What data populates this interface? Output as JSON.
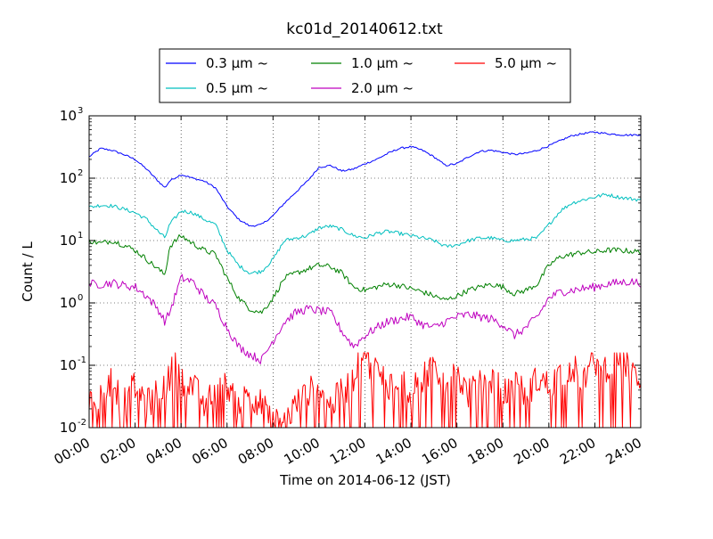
{
  "chart_data": {
    "type": "line",
    "title": "kc01d_20140612.txt",
    "xlabel": "Time on 2014-06-12 (JST)",
    "ylabel": "Count / L",
    "yscale": "log",
    "ylim": [
      0.01,
      1000
    ],
    "xlim_hours": [
      0,
      24
    ],
    "x_ticks": [
      "00:00",
      "02:00",
      "04:00",
      "06:00",
      "08:00",
      "10:00",
      "12:00",
      "14:00",
      "16:00",
      "18:00",
      "20:00",
      "22:00",
      "24:00"
    ],
    "y_ticks": [
      {
        "value": 0.01,
        "base": "10",
        "exp": "-2"
      },
      {
        "value": 0.1,
        "base": "10",
        "exp": "-1"
      },
      {
        "value": 1,
        "base": "10",
        "exp": "0"
      },
      {
        "value": 10,
        "base": "10",
        "exp": "1"
      },
      {
        "value": 100,
        "base": "10",
        "exp": "2"
      },
      {
        "value": 1000,
        "base": "10",
        "exp": "3"
      }
    ],
    "grid": true,
    "legend_position": "top-center",
    "series": [
      {
        "name": "0.3 µm  ~",
        "color": "#0000ff",
        "x": [
          0,
          0.5,
          1,
          1.5,
          2,
          2.5,
          3,
          3.3,
          3.5,
          4,
          4.5,
          5,
          5.5,
          6,
          6.5,
          7,
          7.5,
          8,
          8.5,
          9,
          9.5,
          10,
          10.5,
          11,
          11.5,
          12,
          12.5,
          13,
          13.5,
          14,
          14.5,
          15,
          15.5,
          16,
          16.5,
          17,
          17.5,
          18,
          18.5,
          19,
          19.5,
          20,
          20.5,
          21,
          21.5,
          22,
          22.5,
          23,
          23.5,
          24
        ],
        "y": [
          220,
          300,
          280,
          240,
          200,
          140,
          90,
          70,
          90,
          115,
          100,
          90,
          70,
          35,
          22,
          17,
          18,
          25,
          40,
          60,
          90,
          150,
          160,
          130,
          140,
          170,
          200,
          250,
          300,
          320,
          280,
          220,
          160,
          170,
          220,
          270,
          280,
          260,
          240,
          250,
          280,
          330,
          400,
          480,
          520,
          550,
          520,
          500,
          490,
          500
        ]
      },
      {
        "name": "0.5 µm  ~",
        "color": "#00bfbf",
        "x": [
          0,
          0.5,
          1,
          1.5,
          2,
          2.5,
          3,
          3.3,
          3.5,
          4,
          4.5,
          5,
          5.5,
          6,
          6.5,
          7,
          7.5,
          8,
          8.5,
          9,
          9.5,
          10,
          10.5,
          11,
          11.5,
          12,
          12.5,
          13,
          13.5,
          14,
          14.5,
          15,
          15.5,
          16,
          16.5,
          17,
          17.5,
          18,
          18.5,
          19,
          19.5,
          20,
          20.5,
          21,
          21.5,
          22,
          22.5,
          23,
          23.5,
          24
        ],
        "y": [
          34,
          37,
          36,
          32,
          28,
          22,
          14,
          11,
          18,
          30,
          28,
          22,
          18,
          7,
          4,
          3,
          3.2,
          5,
          10,
          11,
          12,
          16,
          17,
          15,
          12,
          11,
          13,
          14,
          13,
          12,
          11,
          10,
          8,
          8.5,
          10,
          11,
          11,
          10,
          10,
          10.5,
          11,
          18,
          30,
          40,
          45,
          50,
          55,
          50,
          47,
          45
        ]
      },
      {
        "name": "1.0 µm  ~",
        "color": "#008000",
        "x": [
          0,
          0.5,
          1,
          1.5,
          2,
          2.5,
          3,
          3.3,
          3.5,
          4,
          4.5,
          5,
          5.5,
          6,
          6.5,
          7,
          7.5,
          8,
          8.5,
          9,
          9.5,
          10,
          10.5,
          11,
          11.5,
          12,
          12.5,
          13,
          13.5,
          14,
          14.5,
          15,
          15.5,
          16,
          16.5,
          17,
          17.5,
          18,
          18.5,
          19,
          19.5,
          20,
          20.5,
          21,
          21.5,
          22,
          22.5,
          23,
          23.5,
          24
        ],
        "y": [
          10,
          9,
          10,
          8.5,
          7,
          5,
          3.5,
          2.8,
          8,
          12,
          9,
          7,
          6,
          2.5,
          1.2,
          0.8,
          0.7,
          1.2,
          2.5,
          3,
          3.5,
          4,
          3.8,
          3,
          1.8,
          1.6,
          1.8,
          2,
          1.9,
          1.7,
          1.5,
          1.3,
          1.1,
          1.3,
          1.6,
          1.8,
          2,
          1.8,
          1.4,
          1.6,
          2,
          4,
          5.5,
          6,
          6.5,
          6.5,
          7,
          7,
          6.8,
          6.5
        ]
      },
      {
        "name": "2.0 µm  ~",
        "color": "#bf00bf",
        "x": [
          0,
          0.5,
          1,
          1.5,
          2,
          2.5,
          3,
          3.3,
          3.5,
          4,
          4.5,
          5,
          5.5,
          6,
          6.5,
          7,
          7.5,
          8,
          8.5,
          9,
          9.5,
          10,
          10.5,
          11,
          11.5,
          12,
          12.5,
          13,
          13.5,
          14,
          14.5,
          15,
          15.5,
          16,
          16.5,
          17,
          17.5,
          18,
          18.5,
          19,
          19.5,
          20,
          20.5,
          21,
          21.5,
          22,
          22.5,
          23,
          23.5,
          24
        ],
        "y": [
          2,
          2,
          2.1,
          1.9,
          1.8,
          1.3,
          0.8,
          0.5,
          0.7,
          2.5,
          2.2,
          1.3,
          0.9,
          0.4,
          0.2,
          0.15,
          0.12,
          0.25,
          0.5,
          0.7,
          0.8,
          0.75,
          0.7,
          0.35,
          0.2,
          0.3,
          0.4,
          0.5,
          0.55,
          0.6,
          0.45,
          0.4,
          0.5,
          0.6,
          0.65,
          0.6,
          0.55,
          0.45,
          0.3,
          0.4,
          0.6,
          1.2,
          1.5,
          1.6,
          1.7,
          1.8,
          2,
          2.1,
          2.2,
          2.1
        ]
      },
      {
        "name": "5.0 µm  ~",
        "color": "#ff0000",
        "x": [
          0,
          0.5,
          1,
          1.5,
          2,
          2.5,
          3,
          3.5,
          3.7,
          4,
          4.5,
          5,
          5.5,
          6,
          6.5,
          7,
          7.5,
          8,
          8.5,
          9,
          9.5,
          10,
          10.5,
          11,
          11.5,
          11.8,
          12,
          12.3,
          12.5,
          13,
          13.5,
          14,
          14.5,
          15,
          15.5,
          16,
          16.5,
          17,
          17.5,
          18,
          18.5,
          19,
          19.5,
          20,
          20.5,
          21,
          21.5,
          22,
          22.5,
          23,
          23.5,
          24
        ],
        "y": [
          0.02,
          0.03,
          0.05,
          0.02,
          0.04,
          0.02,
          0.03,
          0.05,
          0.12,
          0.05,
          0.04,
          0.02,
          0.03,
          0.04,
          0.02,
          0.03,
          0.02,
          0.01,
          0.01,
          0.02,
          0.03,
          0.04,
          0.02,
          0.03,
          0.05,
          0.15,
          0.2,
          0.05,
          0.08,
          0.04,
          0.06,
          0.03,
          0.05,
          0.09,
          0.04,
          0.06,
          0.03,
          0.04,
          0.05,
          0.03,
          0.04,
          0.03,
          0.05,
          0.04,
          0.06,
          0.08,
          0.05,
          0.1,
          0.08,
          0.12,
          0.07,
          0.05
        ]
      }
    ]
  }
}
